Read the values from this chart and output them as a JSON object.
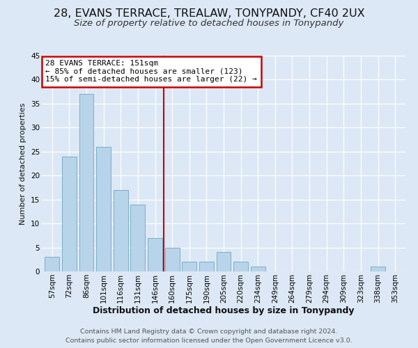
{
  "title1": "28, EVANS TERRACE, TREALAW, TONYPANDY, CF40 2UX",
  "title2": "Size of property relative to detached houses in Tonypandy",
  "xlabel": "Distribution of detached houses by size in Tonypandy",
  "ylabel": "Number of detached properties",
  "bar_labels": [
    "57sqm",
    "72sqm",
    "86sqm",
    "101sqm",
    "116sqm",
    "131sqm",
    "146sqm",
    "160sqm",
    "175sqm",
    "190sqm",
    "205sqm",
    "220sqm",
    "234sqm",
    "249sqm",
    "264sqm",
    "279sqm",
    "294sqm",
    "309sqm",
    "323sqm",
    "338sqm",
    "353sqm"
  ],
  "bar_values": [
    3,
    24,
    37,
    26,
    17,
    14,
    7,
    5,
    2,
    2,
    4,
    2,
    1,
    0,
    0,
    0,
    0,
    0,
    0,
    1,
    0
  ],
  "bar_color": "#b8d4ea",
  "bar_edge_color": "#7aaec8",
  "vline_x": 6.5,
  "vline_color": "#cc0000",
  "annotation_box_text": "28 EVANS TERRACE: 151sqm\n← 85% of detached houses are smaller (123)\n15% of semi-detached houses are larger (22) →",
  "annotation_box_color": "#cc0000",
  "ylim": [
    0,
    45
  ],
  "yticks": [
    0,
    5,
    10,
    15,
    20,
    25,
    30,
    35,
    40,
    45
  ],
  "footer1": "Contains HM Land Registry data © Crown copyright and database right 2024.",
  "footer2": "Contains public sector information licensed under the Open Government Licence v3.0.",
  "bg_color": "#dce8f5",
  "plot_bg_color": "#dce8f5",
  "title1_fontsize": 11.5,
  "title2_fontsize": 9.5,
  "xlabel_fontsize": 9,
  "ylabel_fontsize": 8,
  "tick_fontsize": 7.5,
  "footer_fontsize": 6.8
}
